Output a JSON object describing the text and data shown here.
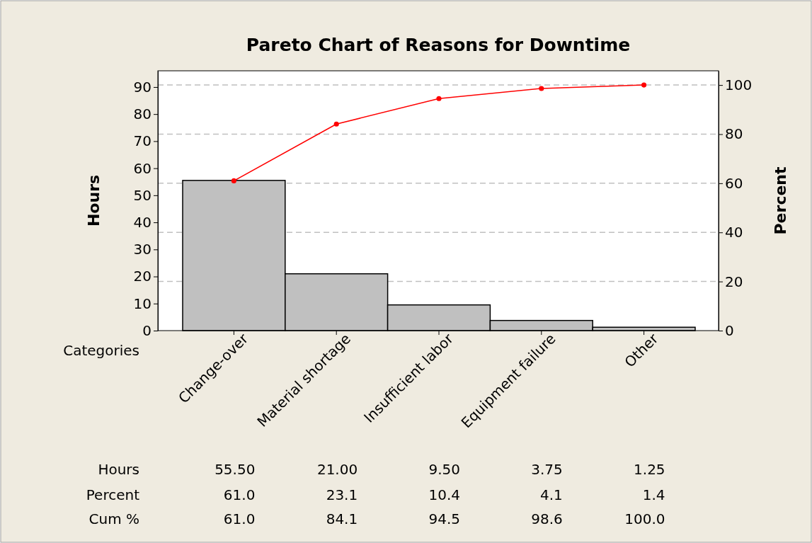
{
  "chart_data": {
    "type": "bar",
    "title": "Pareto Chart of Reasons for Downtime",
    "xlabel": "Categories",
    "ylabel": "Hours",
    "y2label": "Percent",
    "categories": [
      "Change-over",
      "Material shortage",
      "Insufficient labor",
      "Equipment failure",
      "Other"
    ],
    "series": [
      {
        "color": "#c0c0c0",
        "values": [
          55.5,
          21.0,
          9.5,
          3.75,
          1.25
        ],
        "value_labels": [
          "55.50",
          "21.00",
          "9.50",
          "3.75",
          "1.25"
        ]
      },
      {
        "type": "line",
        "axis": "y2",
        "color": "#ff0000",
        "marker": "circle",
        "values": [
          61.0,
          84.1,
          94.5,
          98.6,
          100.0
        ],
        "value_labels": [
          "61.0",
          "84.1",
          "94.5",
          "98.6",
          "100.0"
        ]
      }
    ],
    "ylim": [
      0,
      96
    ],
    "yticks": [
      0,
      10,
      20,
      30,
      40,
      50,
      60,
      70,
      80,
      90
    ],
    "y2lim": [
      0,
      105.8
    ],
    "y2ticks": [
      0,
      20,
      40,
      60,
      80,
      100
    ],
    "ref_lines": [
      {
        "axis": "y2",
        "value": 20,
        "color": "#c0c0c0",
        "line_style": "dashed"
      },
      {
        "axis": "y2",
        "value": 40,
        "color": "#c0c0c0",
        "line_style": "dashed"
      },
      {
        "axis": "y2",
        "value": 60,
        "color": "#c0c0c0",
        "line_style": "dashed"
      },
      {
        "axis": "y2",
        "value": 80,
        "color": "#c0c0c0",
        "line_style": "dashed"
      },
      {
        "axis": "y2",
        "value": 100,
        "color": "#c0c0c0",
        "line_style": "dashed"
      }
    ],
    "annotations": [
      "Hours",
      "Percent",
      "Cum %",
      "61.0",
      "23.1",
      "10.4",
      "4.1",
      "1.4"
    ]
  }
}
